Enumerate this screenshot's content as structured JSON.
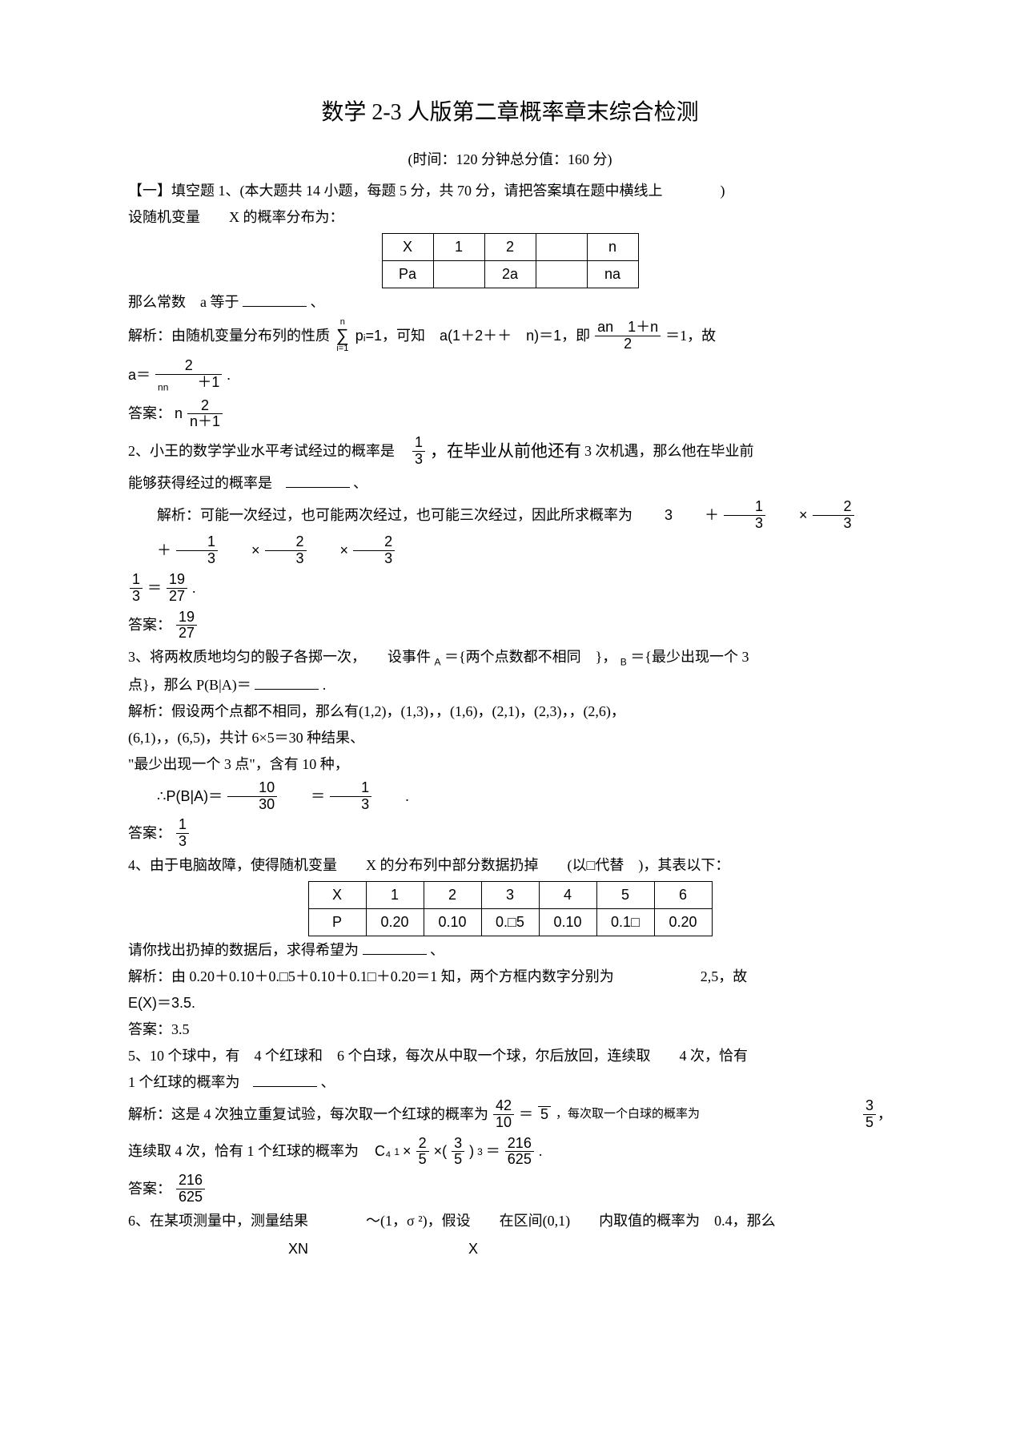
{
  "title": "数学 2-3 人版第二章概率章末综合检测",
  "subtitle": "(时间：120 分钟总分值：160 分)",
  "section1_label": "【一】填空题",
  "q1_intro": "1、(本大题共 14 小题，每题 5 分，共 70 分，请把答案填在题中横线上　　　　)",
  "q1_line2": "设随机变量　　X 的概率分布为：",
  "t1_h": [
    "X",
    "1",
    "2",
    "",
    "n"
  ],
  "t1_r": [
    "Pa",
    "",
    "2a",
    "",
    "na"
  ],
  "q1_line3": "那么常数　a 等于",
  "q1_line3_tail": "、",
  "q1_exp_a": "解析：由随机变量分布列的性质",
  "q1_exp_b": "pᵢ=1，可知　a(1＋2＋＋　n)＝1，即",
  "q1_frac1_num": "an　1＋n",
  "q1_frac1_den": "2",
  "q1_exp_c": "＝1，故",
  "q1_a_eq": "a＝",
  "q1_a_num": "2",
  "q1_a_den": "　　＋1",
  "q1_a_sub": "nn",
  "q1_ans_label": "答案：",
  "q1_ans_n": "n",
  "q1_ans_num": "2",
  "q1_ans_den": "n＋1",
  "q2_a": "2、小王的数学学业水平考试经过的概率是",
  "q2_frac_num": "1",
  "q2_frac_den": "3",
  "q2_b": "，在毕业从前他还有",
  "q2_c": "3 次机遇，那么他在毕业前",
  "q2_d": "能够获得经过的概率是",
  "q2_tail": "、",
  "q2_exp": "解析：可能一次经过，也可能两次经过，也可能三次经过，因此所求概率为",
  "q2_expr_lead": "3",
  "q2_f1n": "1",
  "q2_f1d": "3",
  "q2_f2n": "2",
  "q2_f2d": "3",
  "q2_f3n": "1",
  "q2_f3d": "3",
  "q2_f4n": "2",
  "q2_f4d": "3",
  "q2_f5n": "2",
  "q2_f5d": "3",
  "q2_f6n": "1",
  "q2_f6d": "3",
  "q2_res_num": "19",
  "q2_res_den": "27",
  "q2_ans_label": "答案：",
  "q2_ans_num": "19",
  "q2_ans_den": "27",
  "q3_a": "3、将两枚质地均匀的骰子各掷一次，　　设事件",
  "q3_a_sub": "A",
  "q3_b": "＝{两个点数都不相同　}，",
  "q3_b_sub": "B",
  "q3_c": "＝{最少出现一个 3",
  "q3_d": "点}，那么 P(B|A)＝",
  "q3_d_tail": ".",
  "q3_exp1": "解析：假设两个点都不相同，那么有(1,2)，(1,3)，，(1,6)，(2,1)，(2,3)，，(2,6)，",
  "q3_exp2": "(6,1)，，(6,5)，共计 6×5＝30 种结果、",
  "q3_exp3": "\"最少出现一个 3 点\"，含有 10 种，",
  "q3_pba": "∴P(B|A)＝",
  "q3_f1n": "10",
  "q3_f1d": "30",
  "q3_f2n": "1",
  "q3_f2d": "3",
  "q3_ans_label": "答案：",
  "q3_ans_num": "1",
  "q3_ans_den": "3",
  "q4_a": "4、由于电脑故障，使得随机变量　　X 的分布列中部分数据扔掉　　(以□代替　)，其表以下：",
  "t2_h": [
    "X",
    "1",
    "2",
    "3",
    "4",
    "5",
    "6"
  ],
  "t2_r": [
    "P",
    "0.20",
    "0.10",
    "0.□5",
    "0.10",
    "0.1□",
    "0.20"
  ],
  "q4_b": "请你找出扔掉的数据后，求得希望为",
  "q4_tail": "、",
  "q4_exp": "解析：由 0.20＋0.10＋0.□5＋0.10＋0.1□＋0.20＝1 知，两个方框内数字分别为　　　　　　2,5，故",
  "q4_ex": "E(X)＝3.5.",
  "q4_ans": "答案：3.5",
  "q5_a": "5、10 个球中，有　4 个红球和　6 个白球，每次从中取一个球，尔后放回，连续取　　4 次，恰有",
  "q5_b": "1 个红球的概率为",
  "q5_tail": "、",
  "q5_exp_a": "解析：这是 4 次独立重复试验，每次取一个红球的概率为",
  "q5_f1n": "42",
  "q5_f1d": "10",
  "q5_eq": "＝",
  "q5_f2n": "",
  "q5_f2d": "5",
  "q5_exp_b": "，每次取一个白球的概率为",
  "q5_f3n": "3",
  "q5_f3d": "5",
  "q5_comma": "，",
  "q5_exp_c": "连续取 4 次，恰有 1 个红球的概率为",
  "q5_c4": "C₄",
  "q5_cf1n": "2",
  "q5_cf1d": "5",
  "q5_cf2n": "3",
  "q5_cf2d": "5",
  "q5_cf_pow": "3",
  "q5_cf_lead": "1",
  "q5_resn": "216",
  "q5_resd": "625",
  "q5_ans_label": "答案：",
  "q5_ans_n": "216",
  "q5_ans_d": "625",
  "q6_a": "6、在某项测量中，测量结果　　　　～(1，σ ²)，假设　　在区间(0,1)　　内取值的概率为　0.4，那么",
  "footer_xn": "XN",
  "footer_x": "X"
}
